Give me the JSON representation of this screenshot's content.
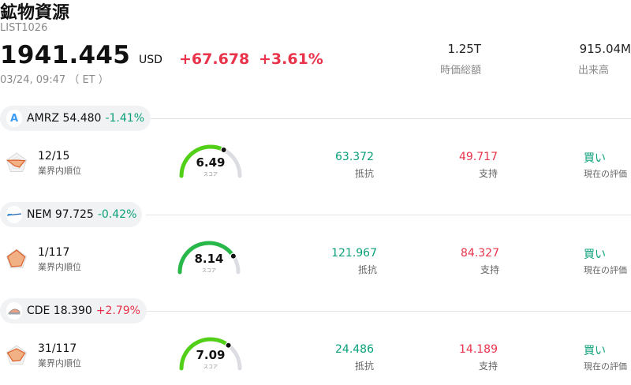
{
  "header": {
    "title": "鉱物資源",
    "code": "LIST1026",
    "price": "1941.445",
    "currency": "USD",
    "change": "+67.678",
    "change_pct": "+3.61%",
    "timestamp": "03/24, 09:47 （ ET ）",
    "market_cap_value": "1.25T",
    "market_cap_label": "時価総額",
    "volume_value": "915.04M",
    "volume_label": "出来高"
  },
  "colors": {
    "up": "#e8334a",
    "down": "#0aa07a",
    "gauge_green": "#52d017",
    "gauge_track": "#dcdde3"
  },
  "stocks": [
    {
      "logo_icon": "amrz-logo-icon",
      "logo_text": "A",
      "ticker_text": "AMRZ 54.480",
      "change": "-1.41%",
      "change_dir": "down",
      "rank": "12/15",
      "rank_label": "業界内順位",
      "rank_level": 0.2,
      "score": "6.49",
      "score_value": 6.49,
      "score_label": "スコア",
      "resistance": "63.372",
      "resistance_label": "抵抗",
      "support": "49.717",
      "support_label": "支持",
      "rating": "買い",
      "rating_label": "現在の評価"
    },
    {
      "logo_icon": "nem-logo-icon",
      "logo_text": "",
      "ticker_text": "NEM 97.725",
      "change": "-0.42%",
      "change_dir": "down",
      "rank": "1/117",
      "rank_label": "業界内順位",
      "rank_level": 1.0,
      "score": "8.14",
      "score_value": 8.14,
      "score_label": "スコア",
      "resistance": "121.967",
      "resistance_label": "抵抗",
      "support": "84.327",
      "support_label": "支持",
      "rating": "買い",
      "rating_label": "現在の評価"
    },
    {
      "logo_icon": "cde-logo-icon",
      "logo_text": "",
      "ticker_text": "CDE 18.390",
      "change": "+2.79%",
      "change_dir": "up",
      "rank": "31/117",
      "rank_label": "業界内順位",
      "rank_level": 0.75,
      "score": "7.09",
      "score_value": 7.09,
      "score_label": "スコア",
      "resistance": "24.486",
      "resistance_label": "抵抗",
      "support": "14.189",
      "support_label": "支持",
      "rating": "買い",
      "rating_label": "現在の評価"
    }
  ]
}
